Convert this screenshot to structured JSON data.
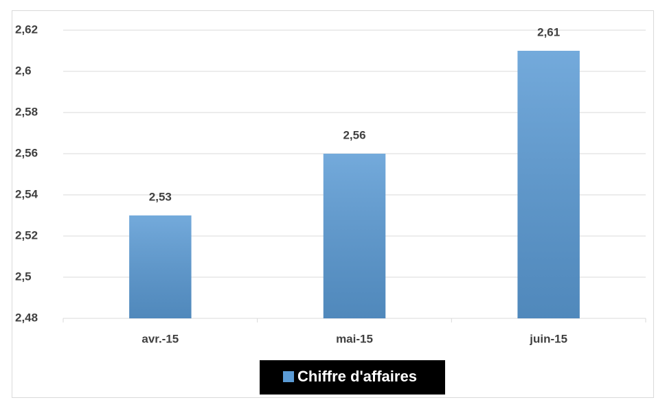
{
  "chart_data": {
    "type": "bar",
    "categories": [
      "avr.-15",
      "mai-15",
      "juin-15"
    ],
    "series": [
      {
        "name": "Chiffre d'affaires",
        "color": "#5b9bd5",
        "values": [
          2.53,
          2.56,
          2.61
        ],
        "value_labels": [
          "2,53",
          "2,56",
          "2,61"
        ]
      }
    ],
    "ylim": [
      2.48,
      2.62
    ],
    "yticks": [
      {
        "value": 2.48,
        "label": "2,48"
      },
      {
        "value": 2.5,
        "label": "2,5"
      },
      {
        "value": 2.52,
        "label": "2,52"
      },
      {
        "value": 2.54,
        "label": "2,54"
      },
      {
        "value": 2.56,
        "label": "2,56"
      },
      {
        "value": 2.58,
        "label": "2,58"
      },
      {
        "value": 2.6,
        "label": "2,6"
      },
      {
        "value": 2.62,
        "label": "2,62"
      }
    ],
    "grid": true,
    "legend": "bottom"
  }
}
